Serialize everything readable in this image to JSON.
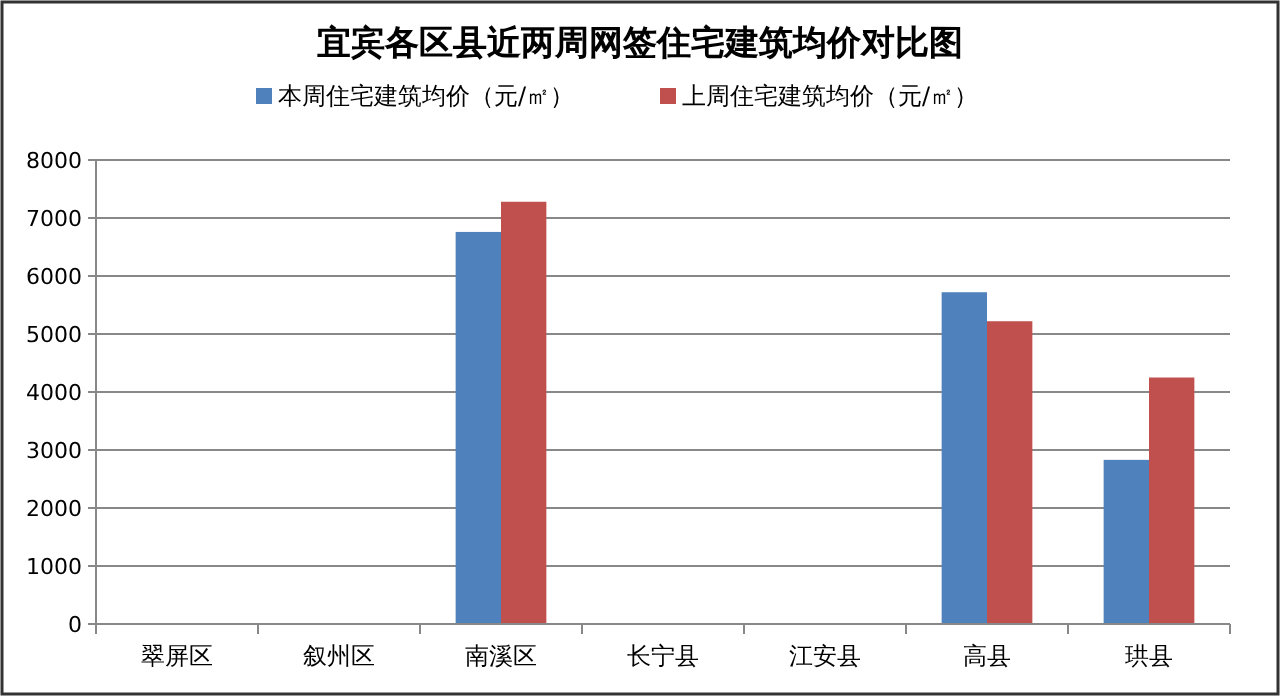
{
  "chart_data": {
    "type": "bar",
    "title": "宜宾各区县近两周网签住宅建筑均价对比图",
    "categories": [
      "翠屏区",
      "叙州区",
      "南溪区",
      "长宁县",
      "江安县",
      "高县",
      "珙县"
    ],
    "series": [
      {
        "name": "本周住宅建筑均价（元/㎡）",
        "color": "#4f81bd",
        "values": [
          null,
          null,
          6760,
          null,
          null,
          5720,
          2830
        ]
      },
      {
        "name": "上周住宅建筑均价（元/㎡）",
        "color": "#c0504d",
        "values": [
          null,
          null,
          7280,
          null,
          null,
          5220,
          4250
        ]
      }
    ],
    "ylim": [
      0,
      8000
    ],
    "yticks": [
      0,
      1000,
      2000,
      3000,
      4000,
      5000,
      6000,
      7000,
      8000
    ],
    "grid": "y",
    "legend": "top"
  }
}
